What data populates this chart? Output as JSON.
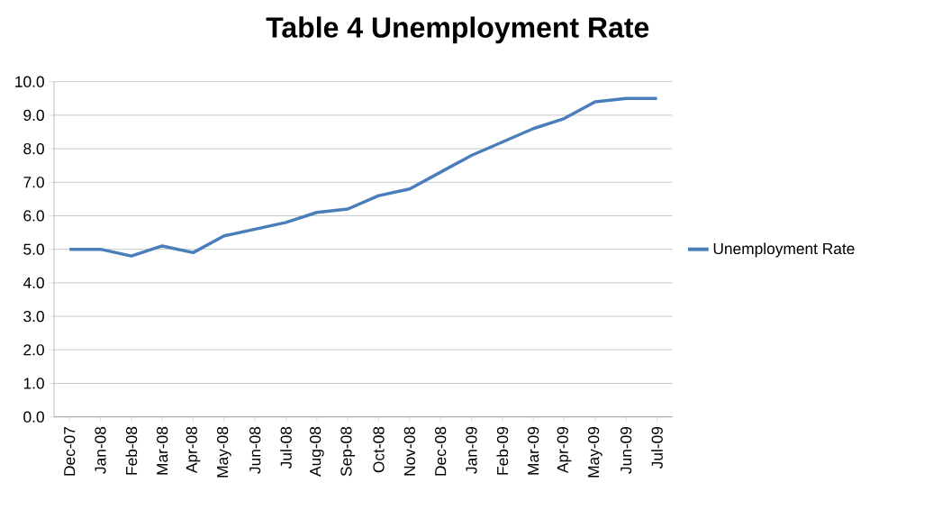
{
  "chart_data": {
    "type": "line",
    "title": "Table 4 Unemployment Rate",
    "categories": [
      "Dec-07",
      "Jan-08",
      "Feb-08",
      "Mar-08",
      "Apr-08",
      "May-08",
      "Jun-08",
      "Jul-08",
      "Aug-08",
      "Sep-08",
      "Oct-08",
      "Nov-08",
      "Dec-08",
      "Jan-09",
      "Feb-09",
      "Mar-09",
      "Apr-09",
      "May-09",
      "Jun-09",
      "Jul-09"
    ],
    "series": [
      {
        "name": "Unemployment Rate",
        "color": "#4a7ebb",
        "values": [
          5.0,
          5.0,
          4.8,
          5.1,
          4.9,
          5.4,
          5.6,
          5.8,
          6.1,
          6.2,
          6.6,
          6.8,
          7.3,
          7.8,
          8.2,
          8.6,
          8.9,
          9.4,
          9.5,
          9.5
        ]
      }
    ],
    "ylim": [
      0,
      10
    ],
    "yticks": [
      {
        "value": 0,
        "label": "0.0"
      },
      {
        "value": 1,
        "label": "1.0"
      },
      {
        "value": 2,
        "label": "2.0"
      },
      {
        "value": 3,
        "label": "3.0"
      },
      {
        "value": 4,
        "label": "4.0"
      },
      {
        "value": 5,
        "label": "5.0"
      },
      {
        "value": 6,
        "label": "6.0"
      },
      {
        "value": 7,
        "label": "7.0"
      },
      {
        "value": 8,
        "label": "8.0"
      },
      {
        "value": 9,
        "label": "9.0"
      },
      {
        "value": 10,
        "label": "10.0"
      }
    ],
    "grid": "y",
    "legend": "right",
    "marker": "none",
    "line_style": "solid"
  }
}
